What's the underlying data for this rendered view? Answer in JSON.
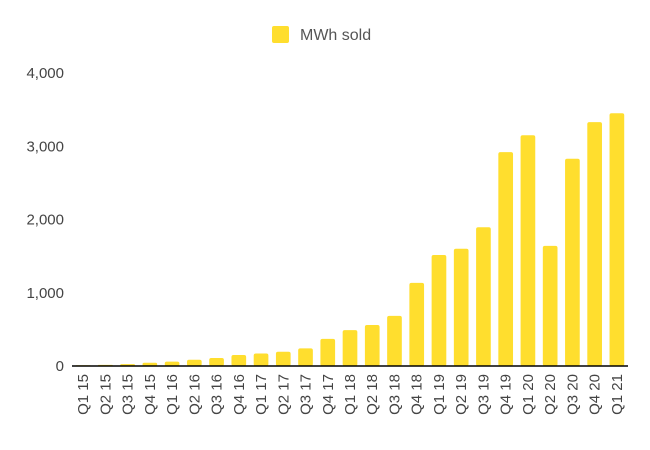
{
  "chart_data": {
    "type": "bar",
    "categories": [
      "Q1 15",
      "Q2 15",
      "Q3 15",
      "Q4 15",
      "Q1 16",
      "Q2 16",
      "Q3 16",
      "Q4 16",
      "Q1 17",
      "Q2 17",
      "Q3 17",
      "Q4 17",
      "Q1 18",
      "Q2 18",
      "Q3 18",
      "Q4 18",
      "Q1 19",
      "Q2 19",
      "Q3 19",
      "Q4 19",
      "Q1 20",
      "Q2 20",
      "Q3 20",
      "Q4 20",
      "Q1 21"
    ],
    "series": [
      {
        "name": "MWh sold",
        "values": [
          10,
          15,
          25,
          45,
          60,
          85,
          110,
          150,
          170,
          195,
          240,
          370,
          490,
          560,
          685,
          1135,
          1515,
          1600,
          1895,
          2920,
          3150,
          1640,
          2830,
          3330,
          3450
        ]
      }
    ],
    "ylim": [
      0,
      4000
    ],
    "yticks": [
      0,
      1000,
      2000,
      3000,
      4000
    ],
    "ytick_labels": [
      "0",
      "1,000",
      "2,000",
      "3,000",
      "4,000"
    ],
    "xlabel": "",
    "ylabel": "",
    "grid": false,
    "legend_position": "top",
    "colors": {
      "bar": "#FFDE2E",
      "axis": "#000000",
      "text": "#444444"
    }
  }
}
